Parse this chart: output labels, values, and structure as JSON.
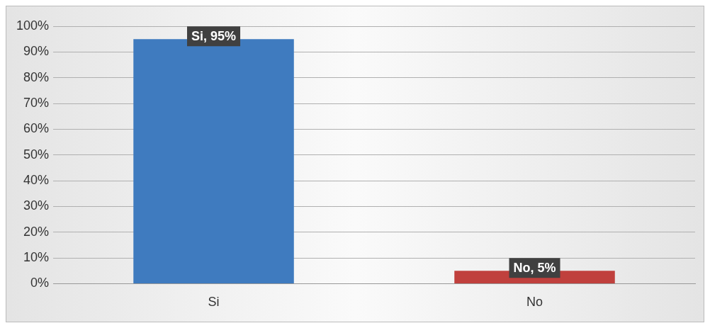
{
  "chart_data": {
    "type": "bar",
    "categories": [
      "Si",
      "No"
    ],
    "values": [
      95,
      5
    ],
    "colors": [
      "#3f7bbf",
      "#c0403d"
    ],
    "value_labels": [
      "Si, 95%",
      "No, 5%"
    ],
    "ylim": [
      0,
      100
    ],
    "yticks": [
      {
        "value": 0,
        "label": "0%"
      },
      {
        "value": 10,
        "label": "10%"
      },
      {
        "value": 20,
        "label": "20%"
      },
      {
        "value": 30,
        "label": "30%"
      },
      {
        "value": 40,
        "label": "40%"
      },
      {
        "value": 50,
        "label": "50%"
      },
      {
        "value": 60,
        "label": "60%"
      },
      {
        "value": 70,
        "label": "70%"
      },
      {
        "value": 80,
        "label": "80%"
      },
      {
        "value": 90,
        "label": "90%"
      },
      {
        "value": 100,
        "label": "100%"
      }
    ],
    "grid": "y",
    "legend": false
  }
}
